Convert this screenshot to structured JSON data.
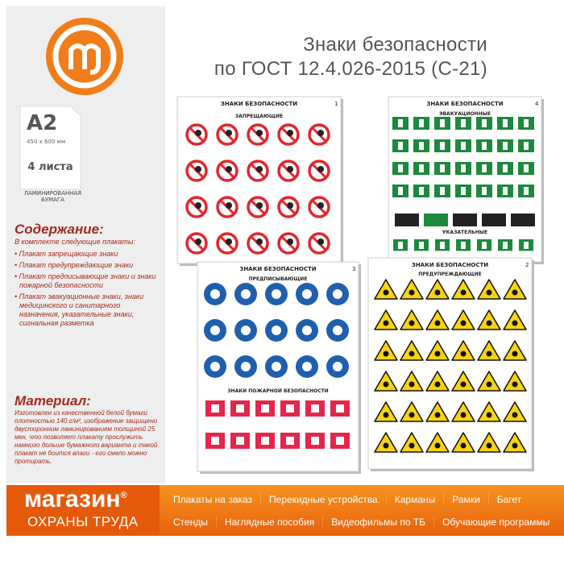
{
  "header": {
    "title_line1": "Знаки безопасности",
    "title_line2": "по ГОСТ 12.4.026-2015 (С-21)"
  },
  "format": {
    "size": "А2",
    "dimensions": "450 х 600 мм",
    "sheets": "4 листа",
    "material_tag": "ЛАМИНИРОВАННАЯ БУМАГА"
  },
  "contents": {
    "heading": "Содержание:",
    "intro": "В комплекте следующие плакаты:",
    "items": [
      "Плакат запрещающие знаки",
      "Плакат предупреждающие знаки",
      "Плакат предписывающие знаки и знаки пожарной безопасности",
      "Плакат эвакуационные знаки, знаки медицинского и санитарного назначения, указательные знаки, сигнальная разметка"
    ]
  },
  "material": {
    "heading": "Материал:",
    "text": "Изготовлен из качественной белой бумаги плотностью 140 г/м², изображение защищено двусторонним ламинированием толщиной 25 мкн, что позволяет плакату прослужить намного дольше бумажного варианта и такой плакат не боится влаги - его смело можно протирать."
  },
  "posters": [
    {
      "title": "ЗНАКИ БЕЗОПАСНОСТИ",
      "number": "1",
      "sections": [
        "ЗАПРЕЩАЮЩИЕ"
      ]
    },
    {
      "title": "ЗНАКИ БЕЗОПАСНОСТИ",
      "number": "4",
      "sections": [
        "ЭВАКУАЦИОННЫЕ",
        "УКАЗАТЕЛЬНЫЕ"
      ]
    },
    {
      "title": "ЗНАКИ БЕЗОПАСНОСТИ",
      "number": "3",
      "sections": [
        "ПРЕДПИСЫВАЮЩИЕ",
        "ЗНАКИ ПОЖАРНОЙ БЕЗОПАСНОСТИ"
      ]
    },
    {
      "title": "ЗНАКИ БЕЗОПАСНОСТИ",
      "number": "2",
      "sections": [
        "ПРЕДУПРЕЖДАЮЩИЕ"
      ]
    }
  ],
  "footer": {
    "brand_line1": "магазин",
    "brand_mark": "®",
    "brand_line2": "ОХРАНЫ ТРУДА",
    "links_row1": [
      "Плакаты на заказ",
      "Перекидные устройства",
      "Карманы",
      "Рамки",
      "Багет"
    ],
    "links_row2": [
      "Стенды",
      "Наглядные пособия",
      "Видеофильмы по ТБ",
      "Обучающие программы"
    ]
  }
}
